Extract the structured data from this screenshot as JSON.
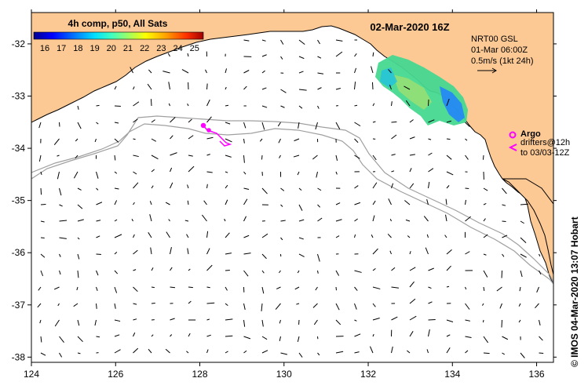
{
  "map": {
    "title": "02-Mar-2020 16Z",
    "colorbar": {
      "title": "4h comp, p50, All Sats",
      "ticks": [
        "16",
        "17",
        "18",
        "19",
        "20",
        "21",
        "22",
        "23",
        "24",
        "25"
      ],
      "colors": [
        "#00008f",
        "#0000ff",
        "#0060ff",
        "#00c0ff",
        "#20ffdf",
        "#80ff80",
        "#dfff20",
        "#ffc000",
        "#ff6000",
        "#df0000",
        "#800000"
      ]
    },
    "current_info": {
      "line1": "NRT00 GSL",
      "line2": "01-Mar 06:00Z",
      "line3": "0.5m/s (1kt 24h)"
    },
    "legend": {
      "argo_label": "Argo",
      "drifters_label": "drifters@12h",
      "drifters_sub": "to 03/03-12Z"
    },
    "credit": "©  IMOS 04-Mar-2020 13:07 Hobart",
    "x_ticks": [
      {
        "value": 124,
        "label": "124"
      },
      {
        "value": 126,
        "label": "126"
      },
      {
        "value": 128,
        "label": "128"
      },
      {
        "value": 130,
        "label": "130"
      },
      {
        "value": 132,
        "label": "132"
      },
      {
        "value": 134,
        "label": "134"
      },
      {
        "value": 136,
        "label": "136"
      }
    ],
    "y_ticks": [
      {
        "value": -32,
        "label": "-32"
      },
      {
        "value": -33,
        "label": "-33"
      },
      {
        "value": -34,
        "label": "-34"
      },
      {
        "value": -35,
        "label": "-35"
      },
      {
        "value": -36,
        "label": "-36"
      },
      {
        "value": -37,
        "label": "-37"
      },
      {
        "value": -38,
        "label": "-38"
      }
    ],
    "extent": {
      "lon": [
        124,
        136.4
      ],
      "lat": [
        -38.1,
        -31.4
      ]
    },
    "land_color": "#fcc995",
    "sea_color": "#ffffff",
    "argo_color": "#ff00ff",
    "isobath_color": "#a0a0a0"
  }
}
